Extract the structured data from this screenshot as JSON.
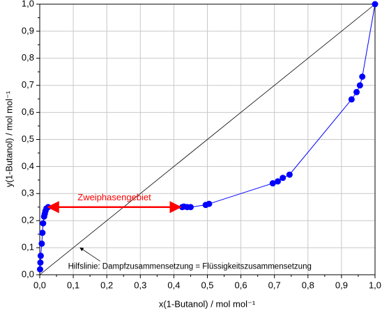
{
  "chart_data": {
    "type": "line",
    "x_label": "x(1-Butanol) / mol mol⁻¹",
    "y_label": "y(1-Butanol) / mol mol⁻¹",
    "xlim": [
      0,
      1
    ],
    "ylim": [
      0,
      1
    ],
    "xticks": [
      {
        "value": 0,
        "label": "0,0"
      },
      {
        "value": 0.1,
        "label": "0,1"
      },
      {
        "value": 0.2,
        "label": "0,2"
      },
      {
        "value": 0.3,
        "label": "0,3"
      },
      {
        "value": 0.4,
        "label": "0,4"
      },
      {
        "value": 0.5,
        "label": "0,5"
      },
      {
        "value": 0.6,
        "label": "0,6"
      },
      {
        "value": 0.7,
        "label": "0,7"
      },
      {
        "value": 0.8,
        "label": "0,8"
      },
      {
        "value": 0.9,
        "label": "0,9"
      },
      {
        "value": 1,
        "label": "1,0"
      }
    ],
    "yticks": [
      {
        "value": 0,
        "label": "0,0"
      },
      {
        "value": 0.1,
        "label": "0,1"
      },
      {
        "value": 0.2,
        "label": "0,2"
      },
      {
        "value": 0.3,
        "label": "0,3"
      },
      {
        "value": 0.4,
        "label": "0,4"
      },
      {
        "value": 0.5,
        "label": "0,5"
      },
      {
        "value": 0.6,
        "label": "0,6"
      },
      {
        "value": 0.7,
        "label": "0,7"
      },
      {
        "value": 0.8,
        "label": "0,8"
      },
      {
        "value": 0.9,
        "label": "0,9"
      },
      {
        "value": 1,
        "label": "1,0"
      }
    ],
    "grid": true,
    "series": [
      {
        "color": "#0000ff",
        "x": [
          0.001,
          0.002,
          0.003,
          0.006,
          0.008,
          0.01,
          0.013,
          0.015,
          0.017,
          0.02,
          0.025,
          0.425,
          0.43,
          0.44,
          0.45,
          0.495,
          0.505,
          0.695,
          0.71,
          0.725,
          0.745,
          0.93,
          0.945,
          0.955,
          0.962,
          1.0
        ],
        "values": [
          0.02,
          0.045,
          0.07,
          0.115,
          0.155,
          0.19,
          0.215,
          0.225,
          0.235,
          0.245,
          0.25,
          0.25,
          0.252,
          0.25,
          0.25,
          0.258,
          0.262,
          0.338,
          0.345,
          0.358,
          0.37,
          0.648,
          0.675,
          0.7,
          0.732,
          1.0
        ]
      }
    ],
    "annotations": [
      {
        "text": "Zweiphasengebiet",
        "color": "#ff0000",
        "x": [
          0.025,
          0.42
        ],
        "y": 0.25
      },
      {
        "text": "Hilfslinie: Dampfzusammensetzung = Flüssigkeitszusammensetzung",
        "x": [
          0.18,
          0.12
        ],
        "y": [
          0.04,
          0.1
        ]
      }
    ]
  }
}
